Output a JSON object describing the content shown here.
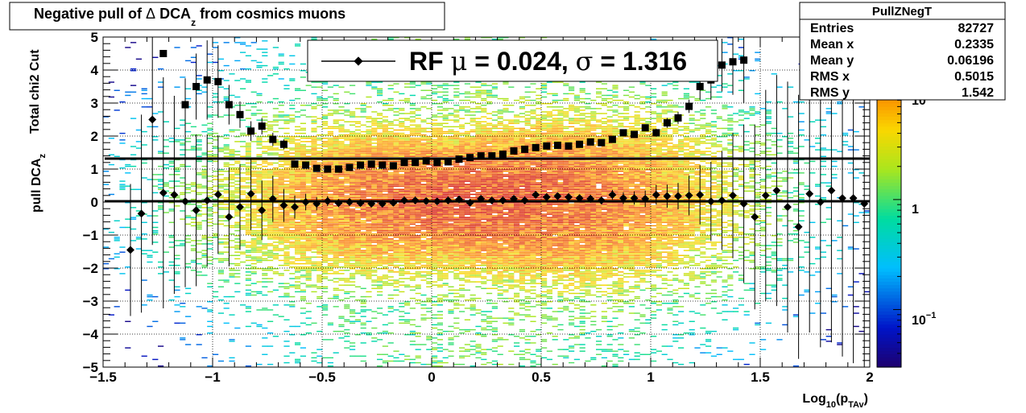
{
  "title": {
    "pre": "Negative pull of ",
    "delta": "Δ",
    "dca": " DCA",
    "sub": "z",
    "post": " from cosmics muons"
  },
  "stats_box": {
    "name": "PullZNegT",
    "rows": [
      {
        "label": "Entries",
        "value": "82727"
      },
      {
        "label": "Mean x",
        "value": "0.2335"
      },
      {
        "label": "Mean y",
        "value": "0.06196"
      },
      {
        "label": "RMS x",
        "value": "0.5015"
      },
      {
        "label": "RMS y",
        "value": "1.542"
      }
    ]
  },
  "legend": {
    "prefix": "RF ",
    "mu": "μ",
    "eq1": " =  0.024, ",
    "sigma": "σ",
    "eq2": " =   1.316"
  },
  "colors": {
    "markers": "#000000",
    "frame": "#000000",
    "background": "#ffffff"
  },
  "chart_data": {
    "type": "heatmap",
    "title": "Negative pull of Δ DCAz from cosmics muons",
    "xlabel": {
      "main": "Log",
      "sub1": "10",
      "mid": "(p",
      "sub2": "TAv",
      "end": ")"
    },
    "ylabel": {
      "main": "pull DCA",
      "sub": "z",
      "line2": "Total chi2 Cut"
    },
    "xlim": [
      -1.5,
      2
    ],
    "ylim": [
      -5,
      5
    ],
    "x_ticks": [
      -1.5,
      -1,
      -0.5,
      0,
      0.5,
      1,
      1.5,
      2
    ],
    "x_tick_labels": [
      "−1.5",
      "−1",
      "−0.5",
      "0",
      "0.5",
      "1",
      "1.5",
      "2"
    ],
    "y_ticks": [
      -5,
      -4,
      -3,
      -2,
      -1,
      0,
      1,
      2,
      3,
      4,
      5
    ],
    "y_tick_labels": [
      "−5",
      "−4",
      "−3",
      "−2",
      "−1",
      "0",
      "1",
      "2",
      "3",
      "4",
      "5"
    ],
    "grid": true,
    "colorbar": {
      "scale": "log",
      "range": [
        0.03,
        30
      ],
      "tick_labels": [
        {
          "value": 0.1,
          "base": "10",
          "exp": "−1"
        },
        {
          "value": 1,
          "base": "1",
          "exp": ""
        },
        {
          "value": 10,
          "base": "10",
          "exp": ""
        }
      ]
    },
    "density": {
      "mean_x": 0.2335,
      "mean_y": 0.06196,
      "rms_x": 0.5015,
      "rms_y": 1.542,
      "entries": 82727
    },
    "fit_lines": [
      {
        "name": "mean",
        "y": 0.024
      },
      {
        "name": "sigma",
        "y": 1.316
      }
    ],
    "mean_points": {
      "x": [
        -1.375,
        -1.325,
        -1.275,
        -1.225,
        -1.175,
        -1.125,
        -1.075,
        -1.025,
        -0.975,
        -0.925,
        -0.875,
        -0.825,
        -0.775,
        -0.725,
        -0.675,
        -0.625,
        -0.575,
        -0.525,
        -0.475,
        -0.425,
        -0.375,
        -0.325,
        -0.275,
        -0.225,
        -0.175,
        -0.125,
        -0.075,
        -0.025,
        0.025,
        0.075,
        0.125,
        0.175,
        0.225,
        0.275,
        0.325,
        0.375,
        0.425,
        0.475,
        0.525,
        0.575,
        0.625,
        0.675,
        0.725,
        0.775,
        0.825,
        0.875,
        0.925,
        0.975,
        1.025,
        1.075,
        1.125,
        1.175,
        1.225,
        1.275,
        1.325,
        1.375,
        1.425,
        1.475,
        1.525,
        1.575,
        1.625,
        1.675,
        1.725,
        1.775,
        1.825,
        1.875,
        1.925,
        1.975
      ],
      "y": [
        -1.45,
        -0.35,
        2.5,
        0.28,
        0.22,
        0.02,
        -0.25,
        0.05,
        0.23,
        -0.45,
        -0.15,
        0.25,
        -0.25,
        0.1,
        -0.1,
        -0.15,
        0.0,
        -0.05,
        0.03,
        -0.03,
        0.0,
        -0.03,
        -0.05,
        -0.05,
        -0.02,
        0.05,
        0.05,
        0.03,
        0.02,
        0.05,
        0.08,
        -0.02,
        0.1,
        0.05,
        0.05,
        0.1,
        0.05,
        0.22,
        0.15,
        0.18,
        0.15,
        0.12,
        0.1,
        0.05,
        0.22,
        0.12,
        0.12,
        0.1,
        0.22,
        0.18,
        0.18,
        0.2,
        0.22,
        0.02,
        0.05,
        0.2,
        -0.05,
        -0.45,
        0.2,
        0.35,
        -0.15,
        -0.75,
        0.25,
        0.0,
        0.35,
        0.12,
        0.12,
        -0.05
      ],
      "yerr": [
        2.0,
        3.0,
        3.8,
        3.5,
        3.0,
        2.6,
        2.3,
        2.0,
        1.8,
        1.5,
        1.3,
        1.1,
        0.9,
        0.7,
        0.5,
        0.35,
        0.25,
        0.2,
        0.15,
        0.12,
        0.1,
        0.08,
        0.08,
        0.07,
        0.07,
        0.07,
        0.07,
        0.07,
        0.07,
        0.07,
        0.07,
        0.07,
        0.07,
        0.07,
        0.07,
        0.08,
        0.08,
        0.08,
        0.09,
        0.1,
        0.1,
        0.1,
        0.12,
        0.12,
        0.15,
        0.18,
        0.2,
        0.25,
        0.3,
        0.35,
        0.4,
        0.6,
        0.9,
        1.2,
        1.5,
        1.9,
        2.4,
        2.8,
        3.2,
        3.5,
        3.8,
        4.0,
        4.2,
        4.4,
        4.6,
        4.8,
        5.0,
        5.0
      ]
    },
    "sigma_points": {
      "x": [
        -1.225,
        -1.125,
        -1.075,
        -1.025,
        -0.975,
        -0.925,
        -0.875,
        -0.825,
        -0.775,
        -0.725,
        -0.675,
        -0.625,
        -0.575,
        -0.525,
        -0.475,
        -0.425,
        -0.375,
        -0.325,
        -0.275,
        -0.225,
        -0.175,
        -0.125,
        -0.075,
        -0.025,
        0.025,
        0.075,
        0.125,
        0.175,
        0.225,
        0.275,
        0.325,
        0.375,
        0.425,
        0.475,
        0.525,
        0.575,
        0.625,
        0.675,
        0.725,
        0.775,
        0.825,
        0.875,
        0.925,
        0.975,
        1.025,
        1.075,
        1.125,
        1.175,
        1.225,
        1.275,
        1.325,
        1.375,
        1.425
      ],
      "y": [
        4.5,
        2.95,
        3.5,
        3.7,
        3.65,
        2.95,
        2.65,
        2.15,
        2.3,
        1.9,
        1.75,
        1.15,
        1.12,
        1.02,
        1.0,
        1.0,
        1.05,
        1.12,
        1.15,
        1.12,
        1.1,
        1.2,
        1.2,
        1.25,
        1.2,
        1.22,
        1.3,
        1.35,
        1.4,
        1.4,
        1.45,
        1.55,
        1.6,
        1.65,
        1.7,
        1.72,
        1.7,
        1.75,
        1.82,
        1.8,
        1.9,
        2.1,
        2.05,
        2.25,
        2.1,
        2.4,
        2.55,
        2.9,
        3.5,
        3.7,
        4.15,
        4.25,
        4.3
      ],
      "yerr": [
        0.0,
        0.8,
        1.0,
        1.2,
        1.1,
        0.6,
        0.4,
        0.3,
        0.25,
        0.2,
        0.15,
        0.08,
        0.06,
        0.05,
        0.04,
        0.04,
        0.04,
        0.04,
        0.04,
        0.04,
        0.04,
        0.04,
        0.04,
        0.04,
        0.04,
        0.04,
        0.04,
        0.04,
        0.04,
        0.04,
        0.04,
        0.04,
        0.04,
        0.04,
        0.04,
        0.05,
        0.05,
        0.05,
        0.06,
        0.06,
        0.07,
        0.08,
        0.08,
        0.1,
        0.12,
        0.15,
        0.18,
        0.2,
        0.4,
        0.6,
        0.8,
        1.0,
        1.3
      ]
    }
  }
}
